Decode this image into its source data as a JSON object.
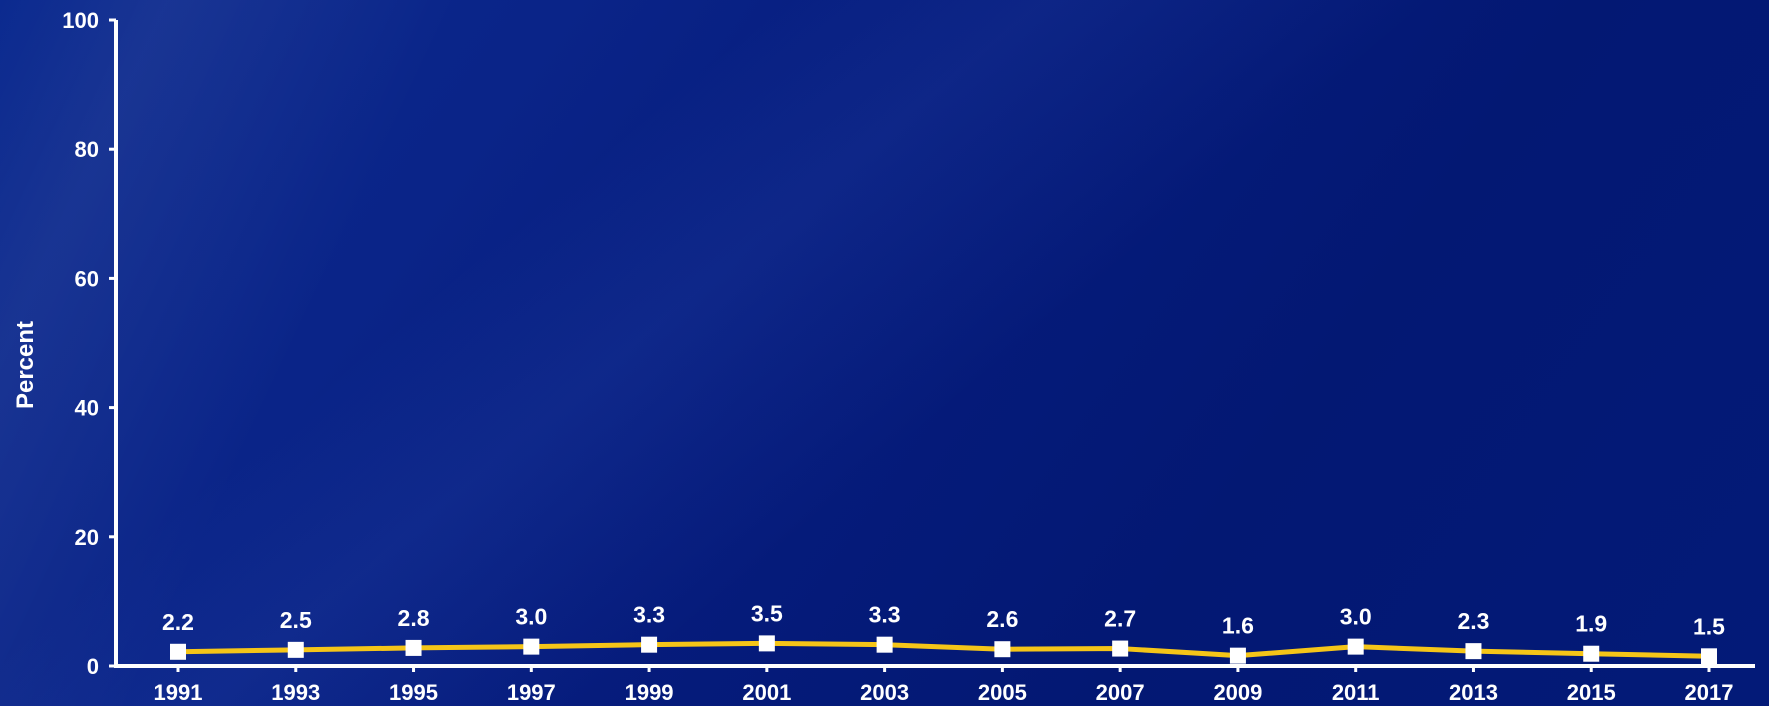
{
  "chart_data": {
    "type": "line",
    "title": "",
    "xlabel": "",
    "ylabel": "Percent",
    "ylim": [
      0,
      100
    ],
    "yticks": [
      0,
      20,
      40,
      60,
      80,
      100
    ],
    "categories": [
      "1991",
      "1993",
      "1995",
      "1997",
      "1999",
      "2001",
      "2003",
      "2005",
      "2007",
      "2009",
      "2011",
      "2013",
      "2015",
      "2017"
    ],
    "series": [
      {
        "values": [
          2.2,
          2.5,
          2.8,
          3.0,
          3.3,
          3.5,
          3.3,
          2.6,
          2.7,
          1.6,
          3.0,
          2.3,
          1.9,
          1.5
        ],
        "labels": [
          "2.2",
          "2.5",
          "2.8",
          "3.0",
          "3.3",
          "3.5",
          "3.3",
          "2.6",
          "2.7",
          "1.6",
          "3.0",
          "2.3",
          "1.9",
          "1.5"
        ],
        "line_color": "#f5c518",
        "marker_color": "#ffffff",
        "marker": "square"
      }
    ],
    "grid": false,
    "legend": "none"
  },
  "colors": {
    "axis": "#ffffff",
    "text": "#ffffff"
  }
}
